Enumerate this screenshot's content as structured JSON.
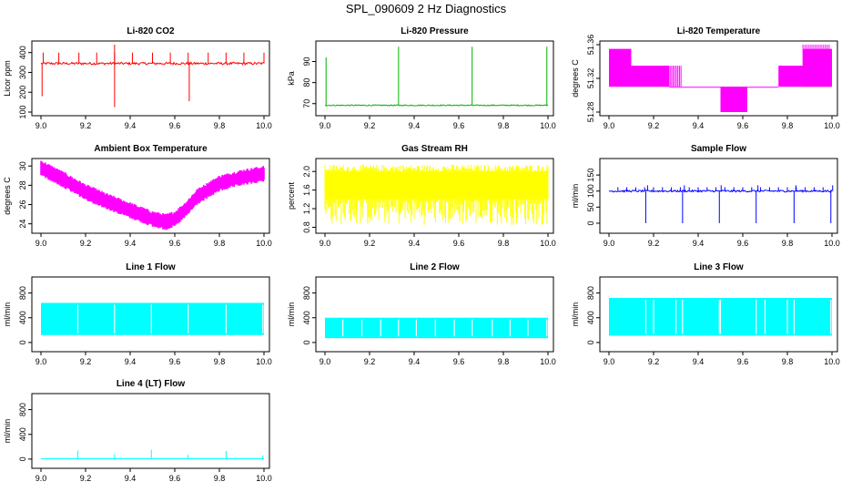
{
  "page_title": "SPL_090609  2 Hz Diagnostics",
  "colors": {
    "red": "#ff0000",
    "green": "#00b000",
    "magenta": "#ff00ff",
    "yellow": "#ffff00",
    "blue": "#0000ff",
    "cyan": "#00ffff"
  },
  "chart_data": [
    {
      "type": "line",
      "title": "Li-820 CO2",
      "xlabel": "",
      "ylabel": "Licor ppm",
      "xlim": [
        9.0,
        10.0
      ],
      "ylim": [
        100,
        440
      ],
      "x_ticks": [
        "9.0",
        "9.2",
        "9.4",
        "9.6",
        "9.8",
        "10.0"
      ],
      "y_ticks": [
        "100",
        "200",
        "300",
        "400"
      ],
      "color": "red",
      "series": [
        {
          "x": [
            9.0,
            9.02,
            9.1,
            9.2,
            9.3,
            9.33,
            9.34,
            9.4,
            9.5,
            9.6,
            9.66,
            9.67,
            9.7,
            9.8,
            9.9,
            10.0
          ],
          "values": [
            340,
            345,
            350,
            345,
            350,
            355,
            348,
            345,
            350,
            340,
            345,
            350,
            345,
            350,
            345,
            350
          ]
        }
      ],
      "notes": {
        "spikes_up": [
          9.01,
          9.08,
          9.17,
          9.25,
          9.33,
          9.41,
          9.5,
          9.58,
          9.66,
          9.75,
          9.83,
          9.91,
          10.0
        ],
        "spikes_down": [
          [
            9.005,
            180
          ],
          [
            9.33,
            125
          ],
          [
            9.665,
            155
          ]
        ]
      }
    },
    {
      "type": "line",
      "title": "Li-820 Pressure",
      "xlabel": "",
      "ylabel": "kPa",
      "xlim": [
        9.0,
        10.0
      ],
      "ylim": [
        66,
        98
      ],
      "x_ticks": [
        "9.0",
        "9.2",
        "9.4",
        "9.6",
        "9.8",
        "10.0"
      ],
      "y_ticks": [
        "70",
        "80",
        "90"
      ],
      "color": "green",
      "series": [
        {
          "x": [
            9.0,
            10.0
          ],
          "values": [
            69.2,
            69.2
          ]
        }
      ],
      "notes": {
        "spikes": [
          [
            9.005,
            92
          ],
          [
            9.33,
            97
          ],
          [
            9.66,
            97
          ],
          [
            9.995,
            97
          ]
        ]
      }
    },
    {
      "type": "line",
      "title": "Li-820 Temperature",
      "xlabel": "",
      "ylabel": "degrees C",
      "xlim": [
        9.0,
        10.0
      ],
      "ylim": [
        51.28,
        51.36
      ],
      "x_ticks": [
        "9.0",
        "9.2",
        "9.4",
        "9.6",
        "9.8",
        "10.0"
      ],
      "y_ticks": [
        "51.28",
        "51.32",
        "51.36"
      ],
      "color": "magenta",
      "series": [
        {
          "x": [
            9.0,
            9.1
          ],
          "values": [
            51.31,
            51.355
          ]
        },
        {
          "x": [
            9.1,
            9.27
          ],
          "values": [
            51.31,
            51.335
          ]
        },
        {
          "x": [
            9.27,
            9.76
          ],
          "values": [
            51.31,
            51.31
          ]
        },
        {
          "x": [
            9.5,
            9.62
          ],
          "values": [
            51.28,
            51.31
          ]
        },
        {
          "x": [
            9.76,
            9.87
          ],
          "values": [
            51.31,
            51.335
          ]
        },
        {
          "x": [
            9.87,
            10.0
          ],
          "values": [
            51.31,
            51.355
          ]
        }
      ]
    },
    {
      "type": "line",
      "title": "Ambient Box Temperature",
      "xlabel": "",
      "ylabel": "degrees C",
      "xlim": [
        9.0,
        10.0
      ],
      "ylim": [
        23.4,
        30.4
      ],
      "x_ticks": [
        "9.0",
        "9.2",
        "9.4",
        "9.6",
        "9.8",
        "10.0"
      ],
      "y_ticks": [
        "24",
        "26",
        "28",
        "30"
      ],
      "color": "magenta",
      "series": [
        {
          "x": [
            9.0,
            9.1,
            9.2,
            9.3,
            9.4,
            9.5,
            9.56,
            9.6,
            9.65,
            9.7,
            9.8,
            9.9,
            10.0
          ],
          "values": [
            29.8,
            28.6,
            27.3,
            26.3,
            25.4,
            24.5,
            24.2,
            24.5,
            25.5,
            26.8,
            28.2,
            28.8,
            29.2
          ]
        }
      ]
    },
    {
      "type": "line",
      "title": "Gas Stream RH",
      "xlabel": "",
      "ylabel": "percent",
      "xlim": [
        9.0,
        10.0
      ],
      "ylim": [
        0.75,
        2.2
      ],
      "x_ticks": [
        "9.0",
        "9.2",
        "9.4",
        "9.6",
        "9.8",
        "10.0"
      ],
      "y_ticks": [
        "0.8",
        "1.2",
        "1.6",
        "2.0"
      ],
      "color": "yellow",
      "series": [
        {
          "x": [
            9.0,
            10.0
          ],
          "values": [
            1.4,
            2.0
          ]
        }
      ],
      "notes": {
        "dips_to": 0.85
      }
    },
    {
      "type": "line",
      "title": "Sample Flow",
      "xlabel": "",
      "ylabel": "ml/min",
      "xlim": [
        9.0,
        10.0
      ],
      "ylim": [
        -20,
        190
      ],
      "x_ticks": [
        "9.0",
        "9.2",
        "9.4",
        "9.6",
        "9.8",
        "10.0"
      ],
      "y_ticks": [
        "0",
        "50",
        "100",
        "150"
      ],
      "color": "blue",
      "series": [
        {
          "x": [
            9.0,
            10.0
          ],
          "values": [
            100,
            100
          ]
        }
      ],
      "notes": {
        "dips": [
          9.165,
          9.33,
          9.495,
          9.66,
          9.83,
          9.995
        ]
      }
    },
    {
      "type": "line",
      "title": "Line 1 Flow",
      "xlabel": "",
      "ylabel": "ml/min",
      "xlim": [
        9.0,
        10.0
      ],
      "ylim": [
        -90,
        1000
      ],
      "x_ticks": [
        "9.0",
        "9.2",
        "9.4",
        "9.6",
        "9.8",
        "10.0"
      ],
      "y_ticks": [
        "0",
        "400",
        "800"
      ],
      "color": "cyan",
      "series": [
        {
          "x": [
            9.0,
            10.0
          ],
          "values": [
            120,
            640
          ]
        }
      ],
      "notes": {
        "gaps": [
          9.165,
          9.33,
          9.495,
          9.66,
          9.83,
          9.995
        ]
      }
    },
    {
      "type": "line",
      "title": "Line 2 Flow",
      "xlabel": "",
      "ylabel": "ml/min",
      "xlim": [
        9.0,
        10.0
      ],
      "ylim": [
        -90,
        1000
      ],
      "x_ticks": [
        "9.0",
        "9.2",
        "9.4",
        "9.6",
        "9.8",
        "10.0"
      ],
      "y_ticks": [
        "0",
        "400",
        "800"
      ],
      "color": "cyan",
      "series": [
        {
          "x": [
            9.0,
            10.0
          ],
          "values": [
            70,
            400
          ]
        }
      ],
      "notes": {
        "gaps": [
          9.08,
          9.165,
          9.25,
          9.33,
          9.41,
          9.495,
          9.58,
          9.66,
          9.75,
          9.83,
          9.91,
          9.995
        ]
      }
    },
    {
      "type": "line",
      "title": "Line 3 Flow",
      "xlabel": "",
      "ylabel": "ml/min",
      "xlim": [
        9.0,
        10.0
      ],
      "ylim": [
        -90,
        1000
      ],
      "x_ticks": [
        "9.0",
        "9.2",
        "9.4",
        "9.6",
        "9.8",
        "10.0"
      ],
      "y_ticks": [
        "0",
        "400",
        "800"
      ],
      "color": "cyan",
      "series": [
        {
          "x": [
            9.0,
            10.0
          ],
          "values": [
            110,
            720
          ]
        }
      ],
      "notes": {
        "gaps": [
          9.165,
          9.2,
          9.3,
          9.33,
          9.495,
          9.5,
          9.66,
          9.7,
          9.8,
          9.83,
          9.995
        ]
      }
    },
    {
      "type": "line",
      "title": "Line 4 (LT) Flow",
      "xlabel": "",
      "ylabel": "ml/min",
      "xlim": [
        9.0,
        10.0
      ],
      "ylim": [
        -90,
        1000
      ],
      "x_ticks": [
        "9.0",
        "9.2",
        "9.4",
        "9.6",
        "9.8",
        "10.0"
      ],
      "y_ticks": [
        "0",
        "400",
        "800"
      ],
      "color": "cyan",
      "series": [
        {
          "x": [
            9.0,
            10.0
          ],
          "values": [
            5,
            5
          ]
        }
      ],
      "notes": {
        "spikes": [
          [
            9.165,
            140
          ],
          [
            9.33,
            80
          ],
          [
            9.495,
            150
          ],
          [
            9.66,
            70
          ],
          [
            9.83,
            130
          ],
          [
            9.995,
            60
          ]
        ]
      }
    }
  ]
}
